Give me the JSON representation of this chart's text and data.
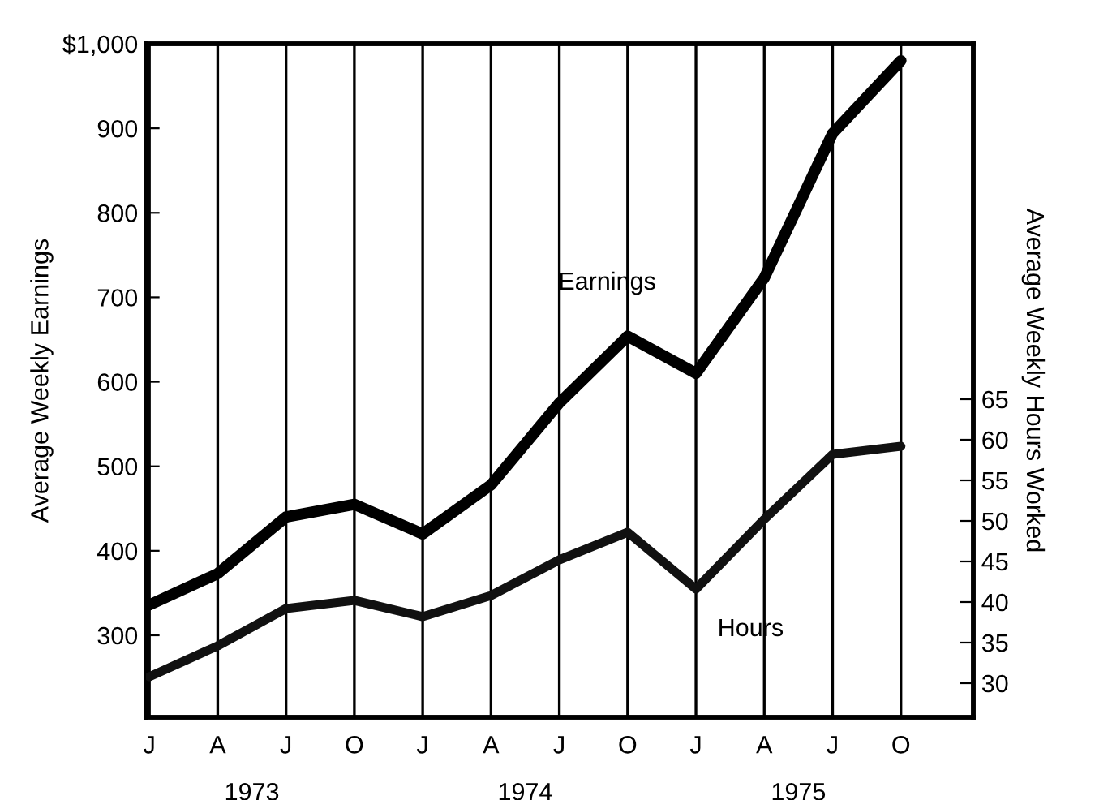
{
  "chart_data": {
    "type": "line",
    "categories": [
      "J",
      "A",
      "J",
      "O",
      "J",
      "A",
      "J",
      "O",
      "J",
      "A",
      "J",
      "O"
    ],
    "series": [
      {
        "name": "Earnings",
        "color": "#000000",
        "values": [
          336,
          373,
          440,
          455,
          420,
          478,
          575,
          654,
          610,
          723,
          894,
          980
        ]
      },
      {
        "name": "Hours",
        "color": "#111111",
        "axis": "y2",
        "values": [
          30.8,
          34.6,
          39.2,
          40.2,
          38.2,
          40.8,
          45.2,
          48.6,
          41.6,
          50.2,
          58.2,
          59.2
        ]
      }
    ],
    "ylabel": "Average Weekly Earnings",
    "y2label": "Average Weekly Hours Worked",
    "ylim": [
      203,
      1000
    ],
    "yticks": [
      300,
      400,
      500,
      600,
      700,
      800,
      900,
      {
        "value": 1000,
        "label": "$1,000"
      }
    ],
    "y2lim": [
      25.8,
      108.8
    ],
    "y2ticks": [
      30,
      35,
      40,
      45,
      50,
      55,
      60,
      65
    ],
    "annotations": [
      "1973",
      "1974",
      "1975"
    ],
    "grid": "x",
    "legend": false,
    "marker": "none",
    "line_style": "solid"
  }
}
